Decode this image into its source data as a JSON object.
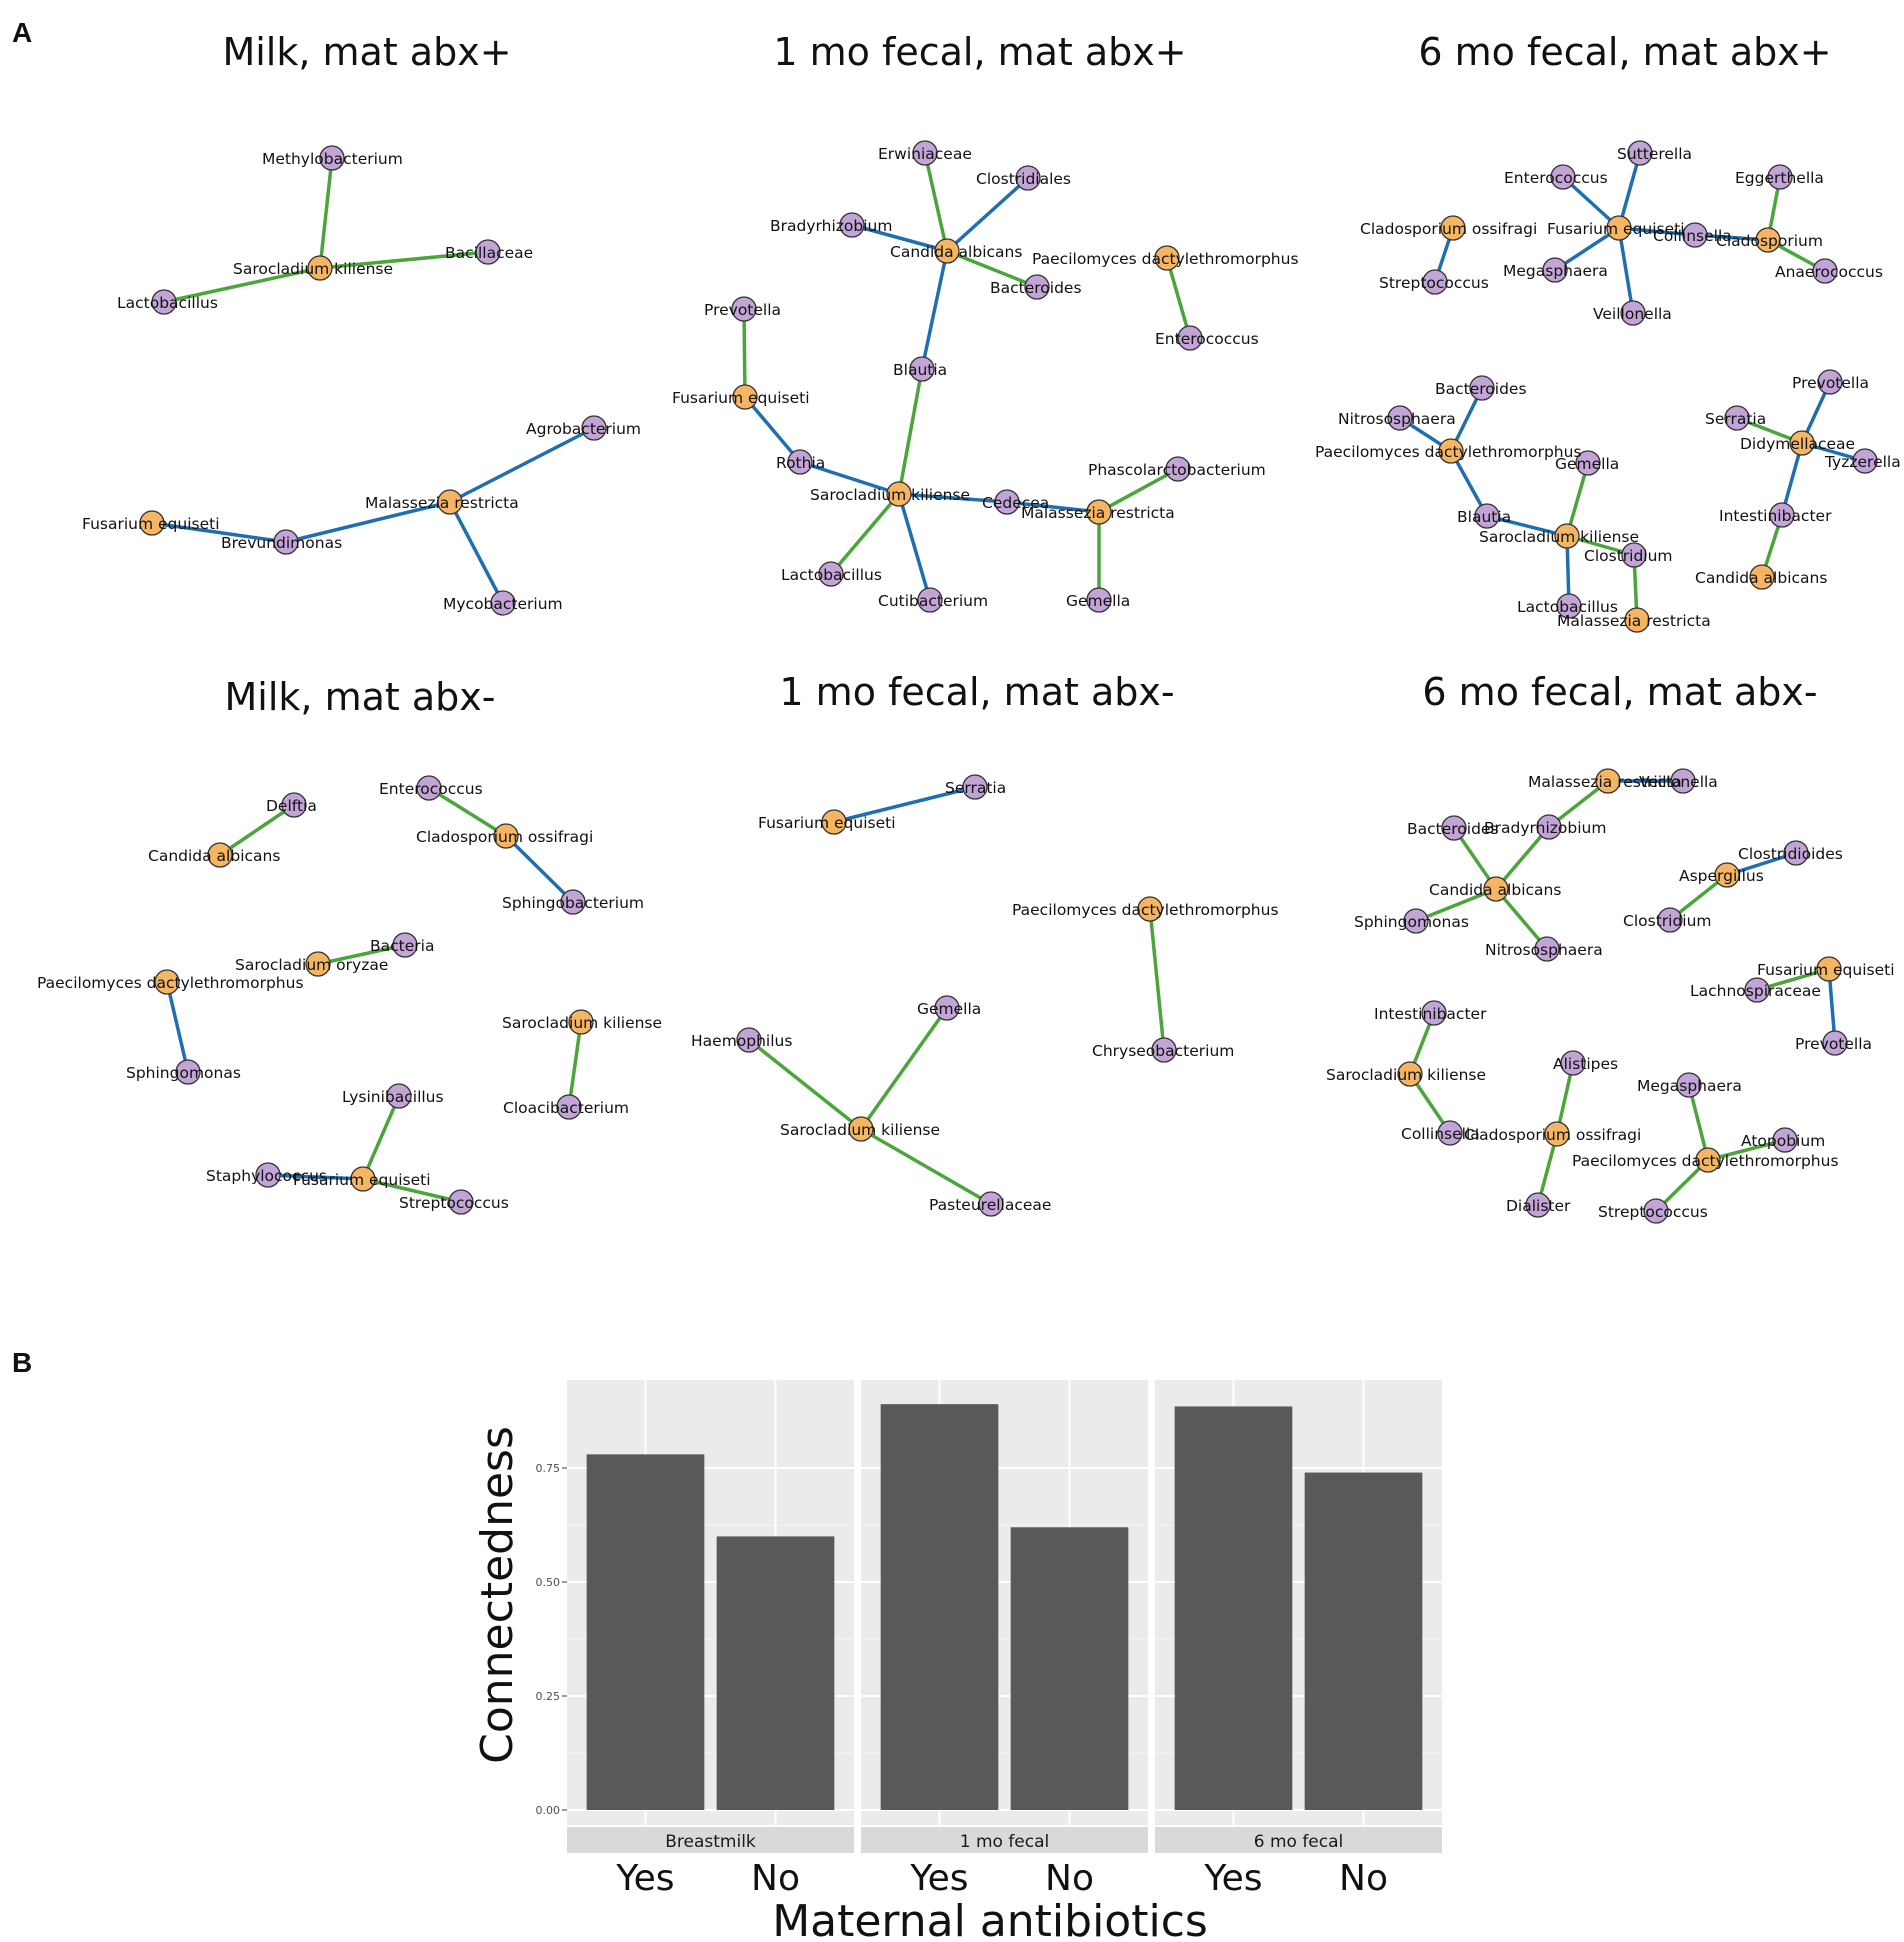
{
  "panels": {
    "a": "A",
    "b": "B"
  },
  "colors": {
    "fungus_node": "#f6b562",
    "bacteria_node": "#c3a4d6",
    "positive_edge": "#4aa53a",
    "negative_edge": "#1f6fb0",
    "bar_fill": "#595959",
    "panel_bg": "#ebebeb",
    "strip_bg": "#d9d9d9"
  },
  "networks": [
    {
      "title": "Milk, mat abx+",
      "nodes": [
        {
          "label": "Methylobacterium",
          "kind": "bacteria"
        },
        {
          "label": "Sarocladium kiliense",
          "kind": "fungus"
        },
        {
          "label": "Bacillaceae",
          "kind": "bacteria"
        },
        {
          "label": "Lactobacillus",
          "kind": "bacteria"
        },
        {
          "label": "Agrobacterium",
          "kind": "bacteria"
        },
        {
          "label": "Malassezia restricta",
          "kind": "fungus"
        },
        {
          "label": "Fusarium equiseti",
          "kind": "fungus"
        },
        {
          "label": "Brevundimonas",
          "kind": "bacteria"
        },
        {
          "label": "Mycobacterium",
          "kind": "bacteria"
        }
      ],
      "edges": [
        [
          1,
          0,
          "positive"
        ],
        [
          1,
          2,
          "positive"
        ],
        [
          1,
          3,
          "positive"
        ],
        [
          5,
          4,
          "negative"
        ],
        [
          5,
          7,
          "negative"
        ],
        [
          5,
          8,
          "negative"
        ],
        [
          6,
          7,
          "negative"
        ]
      ]
    },
    {
      "title": "1 mo fecal, mat abx+",
      "nodes": [
        {
          "label": "Erwiniaceae",
          "kind": "bacteria"
        },
        {
          "label": "Clostridiales",
          "kind": "bacteria"
        },
        {
          "label": "Bradyrhizobium",
          "kind": "bacteria"
        },
        {
          "label": "Candida albicans",
          "kind": "fungus"
        },
        {
          "label": "Bacteroides",
          "kind": "bacteria"
        },
        {
          "label": "Paecilomyces dactylethromorphus",
          "kind": "fungus"
        },
        {
          "label": "Enterococcus",
          "kind": "bacteria"
        },
        {
          "label": "Prevotella",
          "kind": "bacteria"
        },
        {
          "label": "Blautia",
          "kind": "bacteria"
        },
        {
          "label": "Fusarium equiseti",
          "kind": "fungus"
        },
        {
          "label": "Rothia",
          "kind": "bacteria"
        },
        {
          "label": "Sarocladium kiliense",
          "kind": "fungus"
        },
        {
          "label": "Cedecea",
          "kind": "bacteria"
        },
        {
          "label": "Malassezia restricta",
          "kind": "fungus"
        },
        {
          "label": "Phascolarctobacterium",
          "kind": "bacteria"
        },
        {
          "label": "Lactobacillus",
          "kind": "bacteria"
        },
        {
          "label": "Cutibacterium",
          "kind": "bacteria"
        },
        {
          "label": "Gemella",
          "kind": "bacteria"
        }
      ],
      "edges": [
        [
          3,
          0,
          "positive"
        ],
        [
          3,
          1,
          "negative"
        ],
        [
          3,
          2,
          "negative"
        ],
        [
          3,
          4,
          "positive"
        ],
        [
          3,
          8,
          "negative"
        ],
        [
          5,
          6,
          "positive"
        ],
        [
          9,
          7,
          "positive"
        ],
        [
          9,
          10,
          "negative"
        ],
        [
          11,
          8,
          "positive"
        ],
        [
          11,
          10,
          "negative"
        ],
        [
          11,
          12,
          "negative"
        ],
        [
          11,
          15,
          "positive"
        ],
        [
          11,
          16,
          "negative"
        ],
        [
          13,
          12,
          "negative"
        ],
        [
          13,
          14,
          "positive"
        ],
        [
          13,
          17,
          "positive"
        ]
      ]
    },
    {
      "title": "6 mo fecal, mat abx+",
      "nodes": [
        {
          "label": "Sutterella",
          "kind": "bacteria"
        },
        {
          "label": "Enterococcus",
          "kind": "bacteria"
        },
        {
          "label": "Eggerthella",
          "kind": "bacteria"
        },
        {
          "label": "Cladosporium ossifragi",
          "kind": "fungus"
        },
        {
          "label": "Fusarium equiseti",
          "kind": "fungus"
        },
        {
          "label": "Collinsella",
          "kind": "bacteria"
        },
        {
          "label": "Cladosporium",
          "kind": "fungus"
        },
        {
          "label": "Megasphaera",
          "kind": "bacteria"
        },
        {
          "label": "Anaerococcus",
          "kind": "bacteria"
        },
        {
          "label": "Streptococcus",
          "kind": "bacteria"
        },
        {
          "label": "Veillonella",
          "kind": "bacteria"
        },
        {
          "label": "Bacteroides",
          "kind": "bacteria"
        },
        {
          "label": "Prevotella",
          "kind": "bacteria"
        },
        {
          "label": "Nitrososphaera",
          "kind": "bacteria"
        },
        {
          "label": "Serratia",
          "kind": "bacteria"
        },
        {
          "label": "Paecilomyces dactylethromorphus",
          "kind": "fungus"
        },
        {
          "label": "Didymellaceae",
          "kind": "fungus"
        },
        {
          "label": "Gemella",
          "kind": "bacteria"
        },
        {
          "label": "Tyzzerella",
          "kind": "bacteria"
        },
        {
          "label": "Intestinibacter",
          "kind": "bacteria"
        },
        {
          "label": "Blautia",
          "kind": "bacteria"
        },
        {
          "label": "Sarocladium kiliense",
          "kind": "fungus"
        },
        {
          "label": "Clostridium",
          "kind": "bacteria"
        },
        {
          "label": "Candida albicans",
          "kind": "fungus"
        },
        {
          "label": "Lactobacillus",
          "kind": "bacteria"
        },
        {
          "label": "Malassezia restricta",
          "kind": "fungus"
        }
      ],
      "edges": [
        [
          4,
          0,
          "negative"
        ],
        [
          4,
          1,
          "negative"
        ],
        [
          4,
          5,
          "negative"
        ],
        [
          4,
          7,
          "negative"
        ],
        [
          4,
          10,
          "negative"
        ],
        [
          3,
          9,
          "negative"
        ],
        [
          6,
          5,
          "negative"
        ],
        [
          6,
          2,
          "positive"
        ],
        [
          6,
          8,
          "positive"
        ],
        [
          15,
          11,
          "negative"
        ],
        [
          15,
          13,
          "negative"
        ],
        [
          15,
          20,
          "negative"
        ],
        [
          21,
          20,
          "negative"
        ],
        [
          21,
          17,
          "positive"
        ],
        [
          21,
          22,
          "positive"
        ],
        [
          21,
          24,
          "negative"
        ],
        [
          25,
          22,
          "positive"
        ],
        [
          16,
          12,
          "negative"
        ],
        [
          16,
          14,
          "positive"
        ],
        [
          16,
          18,
          "negative"
        ],
        [
          16,
          19,
          "negative"
        ],
        [
          19,
          23,
          "positive"
        ]
      ]
    },
    {
      "title": "Milk, mat abx-",
      "nodes": [
        {
          "label": "Delftia",
          "kind": "bacteria"
        },
        {
          "label": "Enterococcus",
          "kind": "bacteria"
        },
        {
          "label": "Candida albicans",
          "kind": "fungus"
        },
        {
          "label": "Cladosporium ossifragi",
          "kind": "fungus"
        },
        {
          "label": "Sphingobacterium",
          "kind": "bacteria"
        },
        {
          "label": "Bacteria",
          "kind": "bacteria"
        },
        {
          "label": "Sarocladium oryzae",
          "kind": "fungus"
        },
        {
          "label": "Paecilomyces dactylethromorphus",
          "kind": "fungus"
        },
        {
          "label": "Sarocladium kiliense",
          "kind": "fungus"
        },
        {
          "label": "Sphingomonas",
          "kind": "bacteria"
        },
        {
          "label": "Cloacibacterium",
          "kind": "bacteria"
        },
        {
          "label": "Lysinibacillus",
          "kind": "bacteria"
        },
        {
          "label": "Staphylococcus",
          "kind": "bacteria"
        },
        {
          "label": "Fusarium equiseti",
          "kind": "fungus"
        },
        {
          "label": "Streptococcus",
          "kind": "bacteria"
        }
      ],
      "edges": [
        [
          2,
          0,
          "positive"
        ],
        [
          3,
          1,
          "positive"
        ],
        [
          3,
          4,
          "negative"
        ],
        [
          6,
          5,
          "positive"
        ],
        [
          7,
          9,
          "negative"
        ],
        [
          8,
          10,
          "positive"
        ],
        [
          13,
          11,
          "positive"
        ],
        [
          13,
          12,
          "negative"
        ],
        [
          13,
          14,
          "positive"
        ]
      ]
    },
    {
      "title": "1 mo fecal, mat abx-",
      "nodes": [
        {
          "label": "Serratia",
          "kind": "bacteria"
        },
        {
          "label": "Fusarium equiseti",
          "kind": "fungus"
        },
        {
          "label": "Paecilomyces dactylethromorphus",
          "kind": "fungus"
        },
        {
          "label": "Gemella",
          "kind": "bacteria"
        },
        {
          "label": "Haemophilus",
          "kind": "bacteria"
        },
        {
          "label": "Chryseobacterium",
          "kind": "bacteria"
        },
        {
          "label": "Sarocladium kiliense",
          "kind": "fungus"
        },
        {
          "label": "Pasteurellaceae",
          "kind": "bacteria"
        }
      ],
      "edges": [
        [
          1,
          0,
          "negative"
        ],
        [
          2,
          5,
          "positive"
        ],
        [
          6,
          3,
          "positive"
        ],
        [
          6,
          4,
          "positive"
        ],
        [
          6,
          7,
          "positive"
        ]
      ]
    },
    {
      "title": "6 mo fecal, mat abx-",
      "nodes": [
        {
          "label": "Malassezia restricta",
          "kind": "fungus"
        },
        {
          "label": "Veillonella",
          "kind": "bacteria"
        },
        {
          "label": "Bacteroides",
          "kind": "bacteria"
        },
        {
          "label": "Bradyrhizobium",
          "kind": "bacteria"
        },
        {
          "label": "Clostridioides",
          "kind": "bacteria"
        },
        {
          "label": "Aspergillus",
          "kind": "fungus"
        },
        {
          "label": "Candida albicans",
          "kind": "fungus"
        },
        {
          "label": "Sphingomonas",
          "kind": "bacteria"
        },
        {
          "label": "Clostridium",
          "kind": "bacteria"
        },
        {
          "label": "Nitrososphaera",
          "kind": "bacteria"
        },
        {
          "label": "Fusarium equiseti",
          "kind": "fungus"
        },
        {
          "label": "Lachnospiraceae",
          "kind": "bacteria"
        },
        {
          "label": "Intestinibacter",
          "kind": "bacteria"
        },
        {
          "label": "Prevotella",
          "kind": "bacteria"
        },
        {
          "label": "Sarocladium kiliense",
          "kind": "fungus"
        },
        {
          "label": "Alistipes",
          "kind": "bacteria"
        },
        {
          "label": "Megasphaera",
          "kind": "bacteria"
        },
        {
          "label": "Collinsella",
          "kind": "bacteria"
        },
        {
          "label": "Cladosporium ossifragi",
          "kind": "fungus"
        },
        {
          "label": "Atopobium",
          "kind": "bacteria"
        },
        {
          "label": "Paecilomyces dactylethromorphus",
          "kind": "fungus"
        },
        {
          "label": "Dialister",
          "kind": "bacteria"
        },
        {
          "label": "Streptococcus",
          "kind": "bacteria"
        }
      ],
      "edges": [
        [
          0,
          1,
          "negative"
        ],
        [
          0,
          3,
          "positive"
        ],
        [
          6,
          3,
          "positive"
        ],
        [
          6,
          2,
          "positive"
        ],
        [
          6,
          7,
          "positive"
        ],
        [
          6,
          9,
          "positive"
        ],
        [
          5,
          4,
          "negative"
        ],
        [
          5,
          8,
          "positive"
        ],
        [
          10,
          11,
          "positive"
        ],
        [
          10,
          13,
          "negative"
        ],
        [
          14,
          12,
          "positive"
        ],
        [
          14,
          17,
          "positive"
        ],
        [
          18,
          15,
          "positive"
        ],
        [
          18,
          21,
          "positive"
        ],
        [
          20,
          16,
          "positive"
        ],
        [
          20,
          19,
          "positive"
        ],
        [
          20,
          22,
          "positive"
        ]
      ]
    }
  ],
  "chart_data": {
    "type": "bar",
    "facets": [
      "Breastmilk",
      "1 mo fecal",
      "6 mo fecal"
    ],
    "categories": [
      "Yes",
      "No"
    ],
    "series": [
      {
        "facet": "Breastmilk",
        "values": [
          0.78,
          0.6
        ]
      },
      {
        "facet": "1 mo fecal",
        "values": [
          0.89,
          0.62
        ]
      },
      {
        "facet": "6 mo fecal",
        "values": [
          0.885,
          0.74
        ]
      }
    ],
    "xlabel": "Maternal antibiotics",
    "ylabel": "Connectedness",
    "yticks": [
      "0.00",
      "0.25",
      "0.50",
      "0.75"
    ],
    "ytick_values": [
      0,
      0.25,
      0.5,
      0.75
    ],
    "ylim": [
      0,
      0.92
    ],
    "grid": true
  }
}
